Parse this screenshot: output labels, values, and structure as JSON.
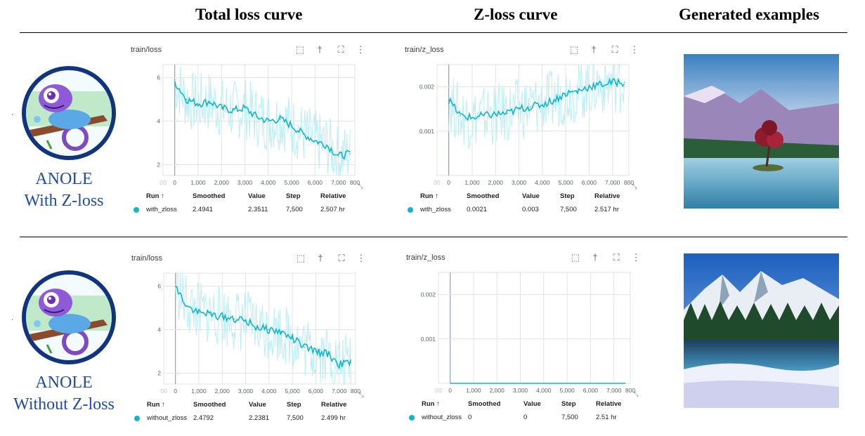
{
  "headers": {
    "total": "Total loss curve",
    "zloss": "Z-loss curve",
    "examples": "Generated examples"
  },
  "rows": [
    {
      "name_line1": "ANOLE",
      "name_line2": "With Z-loss",
      "total_panel": {
        "title": "train/loss",
        "table": {
          "run_header": "Run ↑",
          "smoothed_header": "Smoothed",
          "value_header": "Value",
          "step_header": "Step",
          "relative_header": "Relative",
          "run": "with_zloss",
          "smoothed": "2.4941",
          "value": "2.3511",
          "step": "7,500",
          "relative": "2.507 hr"
        }
      },
      "z_panel": {
        "title": "train/z_loss",
        "table": {
          "run_header": "Run ↑",
          "smoothed_header": "Smoothed",
          "value_header": "Value",
          "step_header": "Step",
          "relative_header": "Relative",
          "run": "with_zloss",
          "smoothed": "0.0021",
          "value": "0.003",
          "step": "7,500",
          "relative": "2.517 hr"
        }
      }
    },
    {
      "name_line1": "ANOLE",
      "name_line2": "Without Z-loss",
      "total_panel": {
        "title": "train/loss",
        "table": {
          "run_header": "Run ↑",
          "smoothed_header": "Smoothed",
          "value_header": "Value",
          "step_header": "Step",
          "relative_header": "Relative",
          "run": "without_zloss",
          "smoothed": "2.4792",
          "value": "2.2381",
          "step": "7,500",
          "relative": "2.499 hr"
        }
      },
      "z_panel": {
        "title": "train/z_loss",
        "table": {
          "run_header": "Run ↑",
          "smoothed_header": "Smoothed",
          "value_header": "Value",
          "step_header": "Step",
          "relative_header": "Relative",
          "run": "without_zloss",
          "smoothed": "0",
          "value": "0",
          "step": "7,500",
          "relative": "2.51 hr"
        }
      }
    }
  ],
  "colors": {
    "smoothed": "#12b5cb",
    "raw": "#b9eef6",
    "grid": "#e3e3e3",
    "axis": "#9aa0a6"
  },
  "chart_data": [
    {
      "type": "line",
      "title": "train/loss",
      "xlabel": "",
      "ylabel": "",
      "xlim": [
        -500,
        7700
      ],
      "ylim": [
        1.5,
        6.6
      ],
      "x_ticks": [
        "00",
        "0",
        "1,000",
        "2,000",
        "3,000",
        "4,000",
        "5,000",
        "6,000",
        "7,000",
        "800"
      ],
      "y_ticks": [
        "2",
        "4",
        "6"
      ],
      "x": [
        0,
        500,
        1000,
        1500,
        2000,
        2500,
        3000,
        3500,
        4000,
        4500,
        5000,
        5500,
        6000,
        6500,
        7000,
        7500
      ],
      "series": [
        {
          "name": "with_zloss",
          "values": [
            5.8,
            5.0,
            4.8,
            4.9,
            4.6,
            4.5,
            4.6,
            4.2,
            4.0,
            4.1,
            3.8,
            3.4,
            3.1,
            2.9,
            2.4,
            2.5
          ]
        }
      ]
    },
    {
      "type": "line",
      "title": "train/z_loss",
      "xlabel": "",
      "ylabel": "",
      "xlim": [
        -500,
        7700
      ],
      "ylim": [
        0.0,
        0.0025
      ],
      "x_ticks": [
        "00",
        "0",
        "1,000",
        "2,000",
        "3,000",
        "4,000",
        "5,000",
        "6,000",
        "7,000",
        "800"
      ],
      "y_ticks": [
        "0.001",
        "0.002"
      ],
      "x": [
        0,
        500,
        1000,
        1500,
        2000,
        2500,
        3000,
        3500,
        4000,
        4500,
        5000,
        5500,
        6000,
        6500,
        7000,
        7500
      ],
      "series": [
        {
          "name": "with_zloss",
          "values": [
            0.0017,
            0.00135,
            0.0013,
            0.00135,
            0.00138,
            0.0014,
            0.0015,
            0.00155,
            0.0016,
            0.0017,
            0.00185,
            0.0019,
            0.002,
            0.00205,
            0.0021,
            0.0021
          ]
        }
      ]
    },
    {
      "type": "line",
      "title": "train/loss",
      "xlabel": "",
      "ylabel": "",
      "xlim": [
        -500,
        7700
      ],
      "ylim": [
        1.5,
        6.6
      ],
      "x_ticks": [
        "00",
        "0",
        "1,000",
        "2,000",
        "3,000",
        "4,000",
        "5,000",
        "6,000",
        "7,000",
        "800"
      ],
      "y_ticks": [
        "2",
        "4",
        "6"
      ],
      "x": [
        0,
        500,
        1000,
        1500,
        2000,
        2500,
        3000,
        3500,
        4000,
        4500,
        5000,
        5500,
        6000,
        6500,
        7000,
        7500
      ],
      "series": [
        {
          "name": "without_zloss",
          "values": [
            6.0,
            5.1,
            4.8,
            4.7,
            4.6,
            4.5,
            4.4,
            4.1,
            4.0,
            3.9,
            3.6,
            3.2,
            3.0,
            2.9,
            2.4,
            2.5
          ]
        }
      ]
    },
    {
      "type": "line",
      "title": "train/z_loss",
      "xlabel": "",
      "ylabel": "",
      "xlim": [
        -500,
        7700
      ],
      "ylim": [
        0.0,
        0.0025
      ],
      "x_ticks": [
        "00",
        "0",
        "1,000",
        "2,000",
        "3,000",
        "4,000",
        "5,000",
        "6,000",
        "7,000",
        "800"
      ],
      "y_ticks": [
        "0.001",
        "0.002"
      ],
      "x": [
        0,
        7500
      ],
      "series": [
        {
          "name": "without_zloss",
          "values": [
            0,
            0
          ]
        }
      ]
    }
  ]
}
